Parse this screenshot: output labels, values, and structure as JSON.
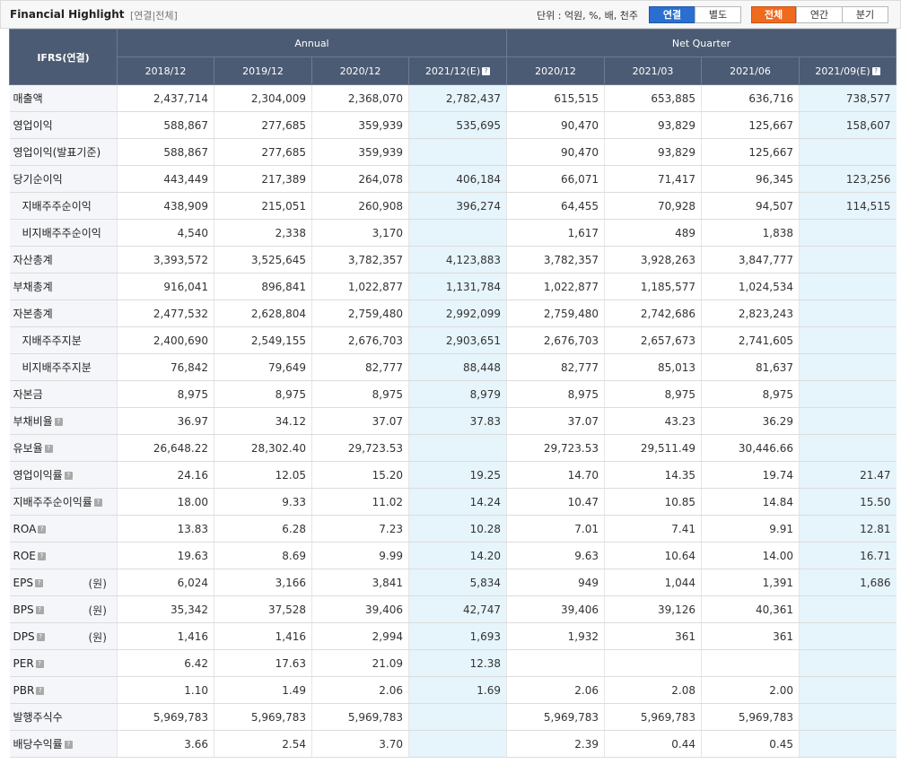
{
  "header": {
    "title": "Financial Highlight",
    "subtitle": "[연결|전체]",
    "unit_text": "단위 : 억원, %, 배, 천주",
    "buttons": {
      "consolidated": "연결",
      "separate": "별도",
      "all": "전체",
      "annual": "연간",
      "quarter": "분기"
    },
    "help_icon_glyph": "?"
  },
  "table": {
    "corner_label": "IFRS(연결)",
    "group_annual": "Annual",
    "group_quarter": "Net Quarter",
    "columns": [
      "2018/12",
      "2019/12",
      "2020/12",
      "2021/12(E)",
      "2020/12",
      "2021/03",
      "2021/06",
      "2021/09(E)"
    ],
    "rows": [
      {
        "label": "매출액",
        "values": [
          "2,437,714",
          "2,304,009",
          "2,368,070",
          "2,782,437",
          "615,515",
          "653,885",
          "636,716",
          "738,577"
        ]
      },
      {
        "label": "영업이익",
        "values": [
          "588,867",
          "277,685",
          "359,939",
          "535,695",
          "90,470",
          "93,829",
          "125,667",
          "158,607"
        ]
      },
      {
        "label": "영업이익(발표기준)",
        "values": [
          "588,867",
          "277,685",
          "359,939",
          "",
          "90,470",
          "93,829",
          "125,667",
          ""
        ]
      },
      {
        "label": "당기순이익",
        "values": [
          "443,449",
          "217,389",
          "264,078",
          "406,184",
          "66,071",
          "71,417",
          "96,345",
          "123,256"
        ]
      },
      {
        "label": "지배주주순이익",
        "values": [
          "438,909",
          "215,051",
          "260,908",
          "396,274",
          "64,455",
          "70,928",
          "94,507",
          "114,515"
        ]
      },
      {
        "label": "비지배주주순이익",
        "values": [
          "4,540",
          "2,338",
          "3,170",
          "",
          "1,617",
          "489",
          "1,838",
          ""
        ]
      },
      {
        "label": "자산총계",
        "values": [
          "3,393,572",
          "3,525,645",
          "3,782,357",
          "4,123,883",
          "3,782,357",
          "3,928,263",
          "3,847,777",
          ""
        ]
      },
      {
        "label": "부채총계",
        "values": [
          "916,041",
          "896,841",
          "1,022,877",
          "1,131,784",
          "1,022,877",
          "1,185,577",
          "1,024,534",
          ""
        ]
      },
      {
        "label": "자본총계",
        "values": [
          "2,477,532",
          "2,628,804",
          "2,759,480",
          "2,992,099",
          "2,759,480",
          "2,742,686",
          "2,823,243",
          ""
        ]
      },
      {
        "label": "지배주주지분",
        "values": [
          "2,400,690",
          "2,549,155",
          "2,676,703",
          "2,903,651",
          "2,676,703",
          "2,657,673",
          "2,741,605",
          ""
        ]
      },
      {
        "label": "비지배주주지분",
        "values": [
          "76,842",
          "79,649",
          "82,777",
          "88,448",
          "82,777",
          "85,013",
          "81,637",
          ""
        ]
      },
      {
        "label": "자본금",
        "values": [
          "8,975",
          "8,975",
          "8,975",
          "8,979",
          "8,975",
          "8,975",
          "8,975",
          ""
        ]
      },
      {
        "label": "부채비율",
        "values": [
          "36.97",
          "34.12",
          "37.07",
          "37.83",
          "37.07",
          "43.23",
          "36.29",
          ""
        ]
      },
      {
        "label": "유보율",
        "values": [
          "26,648.22",
          "28,302.40",
          "29,723.53",
          "",
          "29,723.53",
          "29,511.49",
          "30,446.66",
          ""
        ]
      },
      {
        "label": "영업이익률",
        "values": [
          "24.16",
          "12.05",
          "15.20",
          "19.25",
          "14.70",
          "14.35",
          "19.74",
          "21.47"
        ]
      },
      {
        "label": "지배주주순이익률",
        "values": [
          "18.00",
          "9.33",
          "11.02",
          "14.24",
          "10.47",
          "10.85",
          "14.84",
          "15.50"
        ]
      },
      {
        "label": "ROA",
        "values": [
          "13.83",
          "6.28",
          "7.23",
          "10.28",
          "7.01",
          "7.41",
          "9.91",
          "12.81"
        ]
      },
      {
        "label": "ROE",
        "values": [
          "19.63",
          "8.69",
          "9.99",
          "14.20",
          "9.63",
          "10.64",
          "14.00",
          "16.71"
        ]
      },
      {
        "label": "EPS",
        "unit": "(원)",
        "values": [
          "6,024",
          "3,166",
          "3,841",
          "5,834",
          "949",
          "1,044",
          "1,391",
          "1,686"
        ]
      },
      {
        "label": "BPS",
        "unit": "(원)",
        "values": [
          "35,342",
          "37,528",
          "39,406",
          "42,747",
          "39,406",
          "39,126",
          "40,361",
          ""
        ]
      },
      {
        "label": "DPS",
        "unit": "(원)",
        "values": [
          "1,416",
          "1,416",
          "2,994",
          "1,693",
          "1,932",
          "361",
          "361",
          ""
        ]
      },
      {
        "label": "PER",
        "values": [
          "6.42",
          "17.63",
          "21.09",
          "12.38",
          "",
          "",
          "",
          ""
        ]
      },
      {
        "label": "PBR",
        "values": [
          "1.10",
          "1.49",
          "2.06",
          "1.69",
          "2.06",
          "2.08",
          "2.00",
          ""
        ]
      },
      {
        "label": "발행주식수",
        "values": [
          "5,969,783",
          "5,969,783",
          "5,969,783",
          "",
          "5,969,783",
          "5,969,783",
          "5,969,783",
          ""
        ]
      },
      {
        "label": "배당수익률",
        "values": [
          "3.66",
          "2.54",
          "3.70",
          "",
          "2.39",
          "0.44",
          "0.45",
          ""
        ]
      }
    ]
  }
}
